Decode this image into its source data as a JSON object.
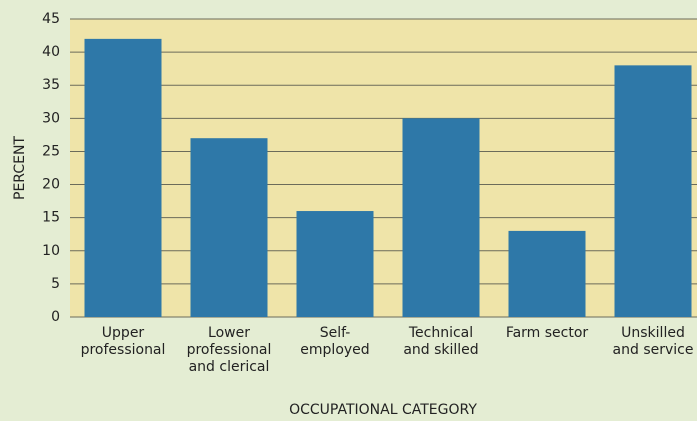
{
  "chart_data": {
    "type": "bar",
    "categories": [
      [
        "Upper",
        "professional"
      ],
      [
        "Lower",
        "professional",
        "and clerical"
      ],
      [
        "Self-",
        "employed"
      ],
      [
        "Technical",
        "and skilled"
      ],
      [
        "Farm sector"
      ],
      [
        "Unskilled",
        "and service"
      ]
    ],
    "values": [
      42,
      27,
      16,
      30,
      13,
      38
    ],
    "color": "#2e78a8",
    "ylim": [
      0,
      45
    ],
    "yticks": [
      0,
      5,
      10,
      15,
      20,
      25,
      30,
      35,
      40,
      45
    ],
    "grid": true,
    "y_label": "PERCENT",
    "x_label": "OCCUPATIONAL CATEGORY"
  }
}
